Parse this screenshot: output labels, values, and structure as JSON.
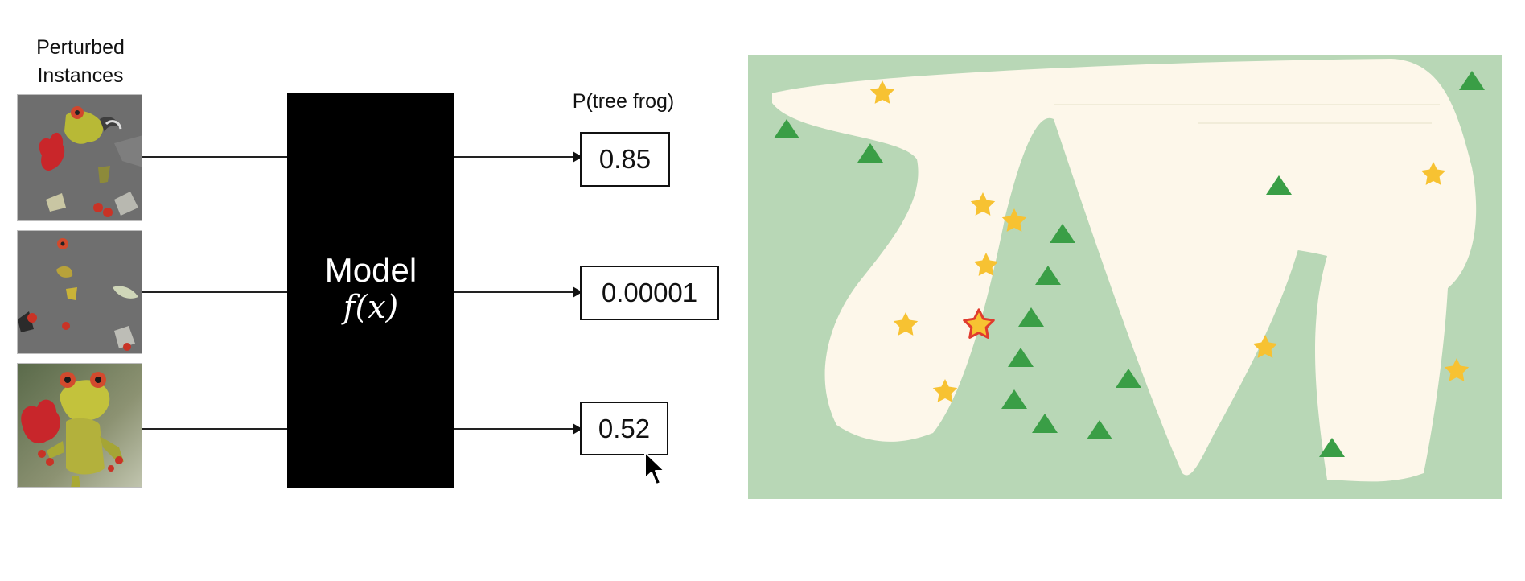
{
  "input_label": "Perturbed\nInstances",
  "model": {
    "title": "Model",
    "function": "f(x)"
  },
  "output_header": "P(tree frog)",
  "outputs": [
    {
      "value": "0.85"
    },
    {
      "value": "0.00001"
    },
    {
      "value": "0.52"
    }
  ],
  "colors": {
    "model_box": "#000000",
    "landscape_green": "#b8d7b6",
    "landscape_cream": "#fdf7ea",
    "star": "#f7c232",
    "triangle": "#3a9e46",
    "highlight_star_outline": "#e03b2e"
  },
  "icons": [
    "star-icon",
    "triangle-icon",
    "cursor-icon"
  ]
}
